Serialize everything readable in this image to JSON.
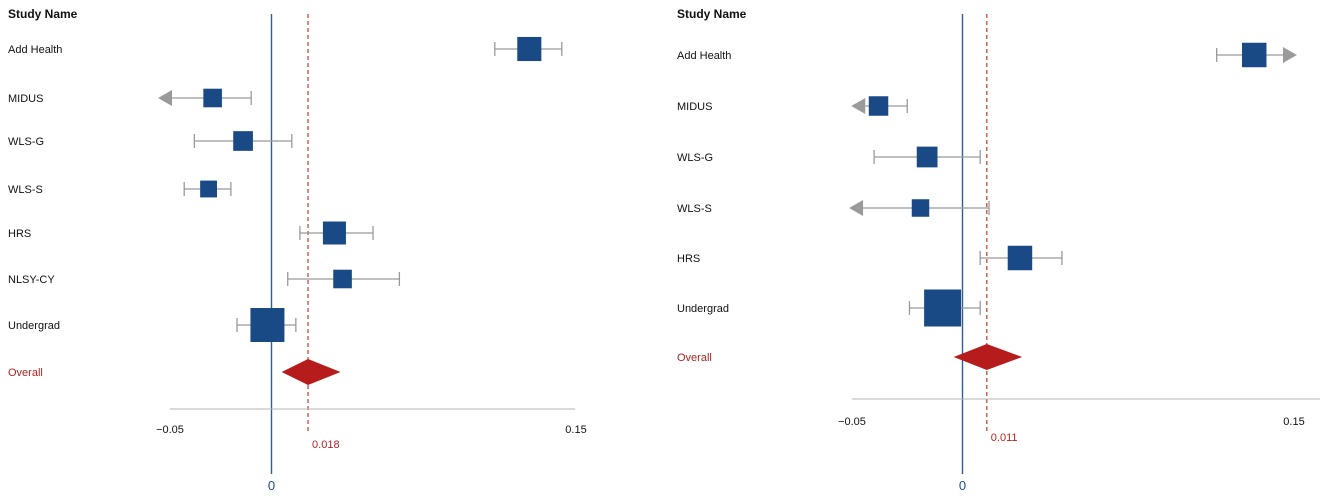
{
  "colors": {
    "box": "#1a4a86",
    "whisker": "#9a9a9a",
    "arrow": "#9a9a9a",
    "zero_line": "#2c5f96",
    "summary_line": "#c0392b",
    "diamond": "#b71c1c",
    "axis": "#b5b5b5"
  },
  "chart_data": [
    {
      "type": "forest",
      "header": "Study Name",
      "xlim": [
        -0.05,
        0.15
      ],
      "ticks": [
        {
          "value": -0.05,
          "label": "−0.05"
        },
        {
          "value": 0.15,
          "label": "0.15"
        }
      ],
      "zero_label": "0",
      "summary": {
        "label": "Overall",
        "estimate": 0.018,
        "ci": [
          0.005,
          0.034
        ],
        "estimate_label": "0.018"
      },
      "studies": [
        {
          "name": "Add Health",
          "estimate": 0.127,
          "ci": [
            0.11,
            0.143
          ],
          "weight": 0.55,
          "arrow_left": false,
          "arrow_right": false
        },
        {
          "name": "MIDUS",
          "estimate": -0.029,
          "ci": [
            -0.049,
            -0.01
          ],
          "weight": 0.3,
          "arrow_left": true,
          "arrow_right": false
        },
        {
          "name": "WLS-G",
          "estimate": -0.014,
          "ci": [
            -0.038,
            0.01
          ],
          "weight": 0.35,
          "arrow_left": false,
          "arrow_right": false
        },
        {
          "name": "WLS-S",
          "estimate": -0.031,
          "ci": [
            -0.043,
            -0.02
          ],
          "weight": 0.22,
          "arrow_left": false,
          "arrow_right": false
        },
        {
          "name": "HRS",
          "estimate": 0.031,
          "ci": [
            0.014,
            0.05
          ],
          "weight": 0.5,
          "arrow_left": false,
          "arrow_right": false
        },
        {
          "name": "NLSY-CY",
          "estimate": 0.035,
          "ci": [
            0.008,
            0.063
          ],
          "weight": 0.3,
          "arrow_left": false,
          "arrow_right": false
        },
        {
          "name": "Undergrad",
          "estimate": -0.002,
          "ci": [
            -0.017,
            0.012
          ],
          "weight": 1.0,
          "arrow_left": false,
          "arrow_right": false
        }
      ]
    },
    {
      "type": "forest",
      "header": "Study Name",
      "xlim": [
        -0.05,
        0.15
      ],
      "ticks": [
        {
          "value": -0.05,
          "label": "−0.05"
        },
        {
          "value": 0.15,
          "label": "0.15"
        }
      ],
      "zero_label": "0",
      "summary": {
        "label": "Overall",
        "estimate": 0.011,
        "ci": [
          -0.004,
          0.027
        ],
        "estimate_label": "0.011"
      },
      "studies": [
        {
          "name": "Add Health",
          "estimate": 0.132,
          "ci": [
            0.115,
            0.145
          ],
          "weight": 0.5,
          "arrow_left": false,
          "arrow_right": true
        },
        {
          "name": "MIDUS",
          "estimate": -0.038,
          "ci": [
            -0.044,
            -0.025
          ],
          "weight": 0.3,
          "arrow_left": true,
          "arrow_right": false
        },
        {
          "name": "WLS-G",
          "estimate": -0.016,
          "ci": [
            -0.04,
            0.008
          ],
          "weight": 0.35,
          "arrow_left": false,
          "arrow_right": false
        },
        {
          "name": "WLS-S",
          "estimate": -0.019,
          "ci": [
            -0.045,
            0.012
          ],
          "weight": 0.22,
          "arrow_left": true,
          "arrow_right": false
        },
        {
          "name": "HRS",
          "estimate": 0.026,
          "ci": [
            0.008,
            0.045
          ],
          "weight": 0.5,
          "arrow_left": false,
          "arrow_right": false
        },
        {
          "name": "Undergrad",
          "estimate": -0.009,
          "ci": [
            -0.024,
            0.008
          ],
          "weight": 1.0,
          "arrow_left": false,
          "arrow_right": false
        }
      ]
    }
  ]
}
